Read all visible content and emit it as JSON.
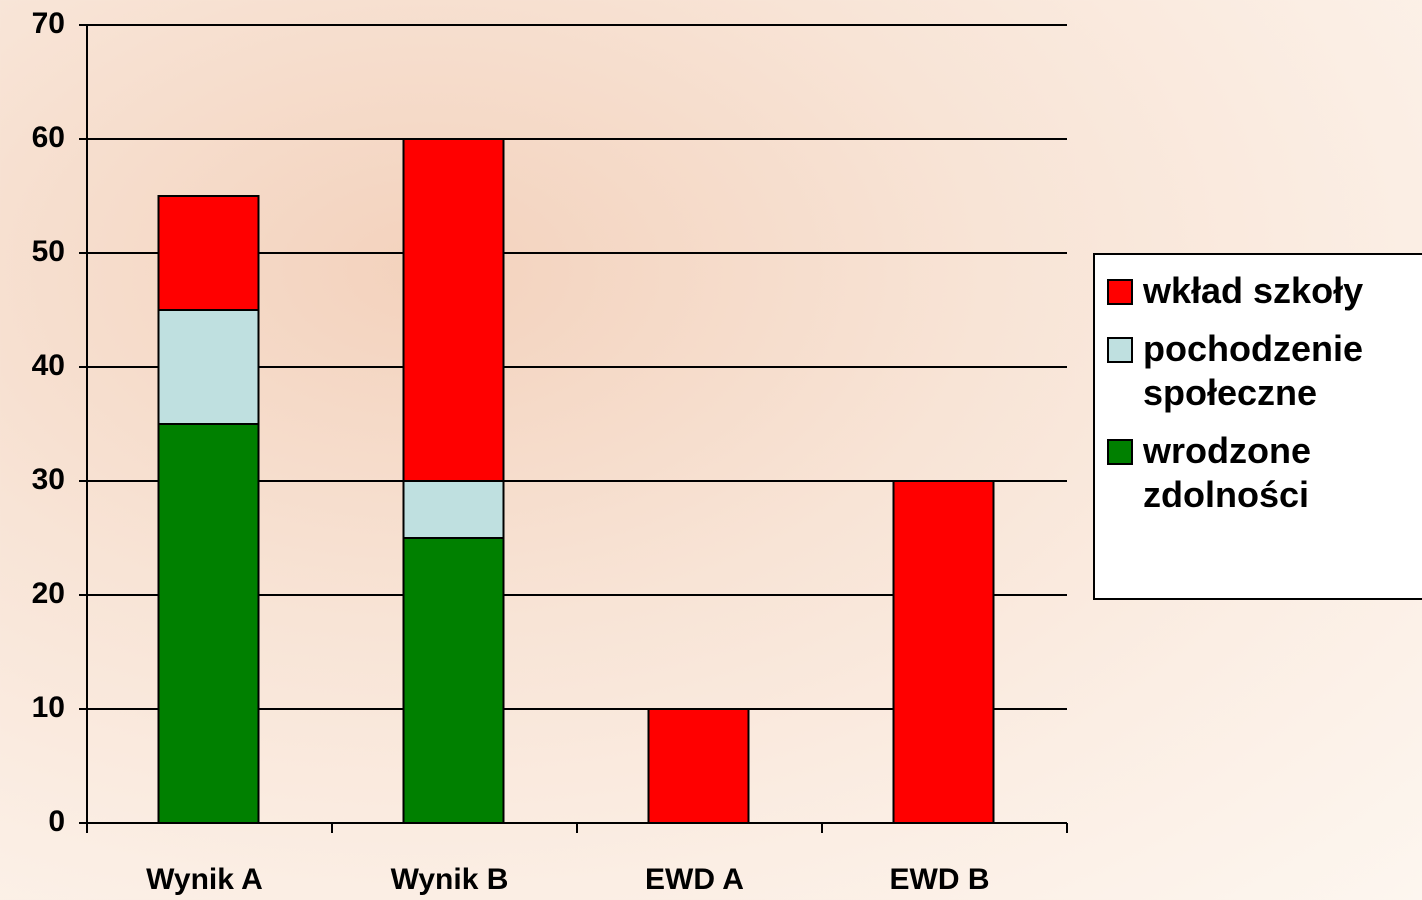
{
  "chart_data": {
    "type": "stacked_bar",
    "categories": [
      "Wynik A",
      "Wynik B",
      "EWD A",
      "EWD B"
    ],
    "series": [
      {
        "name": "wrodzone zdolności",
        "color": "#008000",
        "values": [
          35,
          25,
          0,
          0
        ]
      },
      {
        "name": "pochodzenie społeczne",
        "color": "#bfe0e0",
        "values": [
          10,
          5,
          0,
          0
        ]
      },
      {
        "name": "wkład szkoły",
        "color": "#ff0000",
        "values": [
          10,
          30,
          10,
          30
        ]
      }
    ],
    "ylim": [
      0,
      70
    ],
    "yticks": [
      0,
      10,
      20,
      30,
      40,
      50,
      60,
      70
    ],
    "grid": true,
    "legend": "right"
  }
}
